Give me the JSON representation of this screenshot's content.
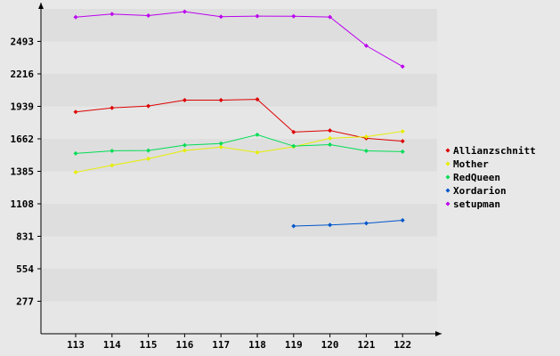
{
  "chart_data": {
    "type": "line",
    "title": "",
    "xlabel": "",
    "ylabel": "",
    "x": [
      113,
      114,
      115,
      116,
      117,
      118,
      119,
      120,
      121,
      122
    ],
    "y_ticks": [
      277,
      554,
      831,
      1108,
      1385,
      1662,
      1939,
      2216,
      2493
    ],
    "ylim": [
      0,
      2770
    ],
    "grid": "horizontal bands",
    "legend_position": "right",
    "series": [
      {
        "name": "Allianzschnitt",
        "color": "#dd0000",
        "values": [
          1892,
          1926,
          1942,
          1992,
          1992,
          1999,
          1720,
          1733,
          1667,
          1642
        ]
      },
      {
        "name": "Mother",
        "color": "#e6ee00",
        "values": [
          1377,
          1436,
          1492,
          1562,
          1592,
          1546,
          1595,
          1667,
          1680,
          1726
        ]
      },
      {
        "name": "RedQueen",
        "color": "#00dd55",
        "values": [
          1538,
          1560,
          1562,
          1608,
          1622,
          1697,
          1600,
          1613,
          1560,
          1553
        ]
      },
      {
        "name": "Xordarion",
        "color": "#0055cc",
        "values": [
          null,
          null,
          null,
          null,
          null,
          null,
          918,
          928,
          942,
          968
        ]
      },
      {
        "name": "setupman",
        "color": "#bb00ee",
        "values": [
          2700,
          2726,
          2713,
          2746,
          2704,
          2708,
          2707,
          2701,
          2456,
          2279
        ]
      }
    ]
  }
}
